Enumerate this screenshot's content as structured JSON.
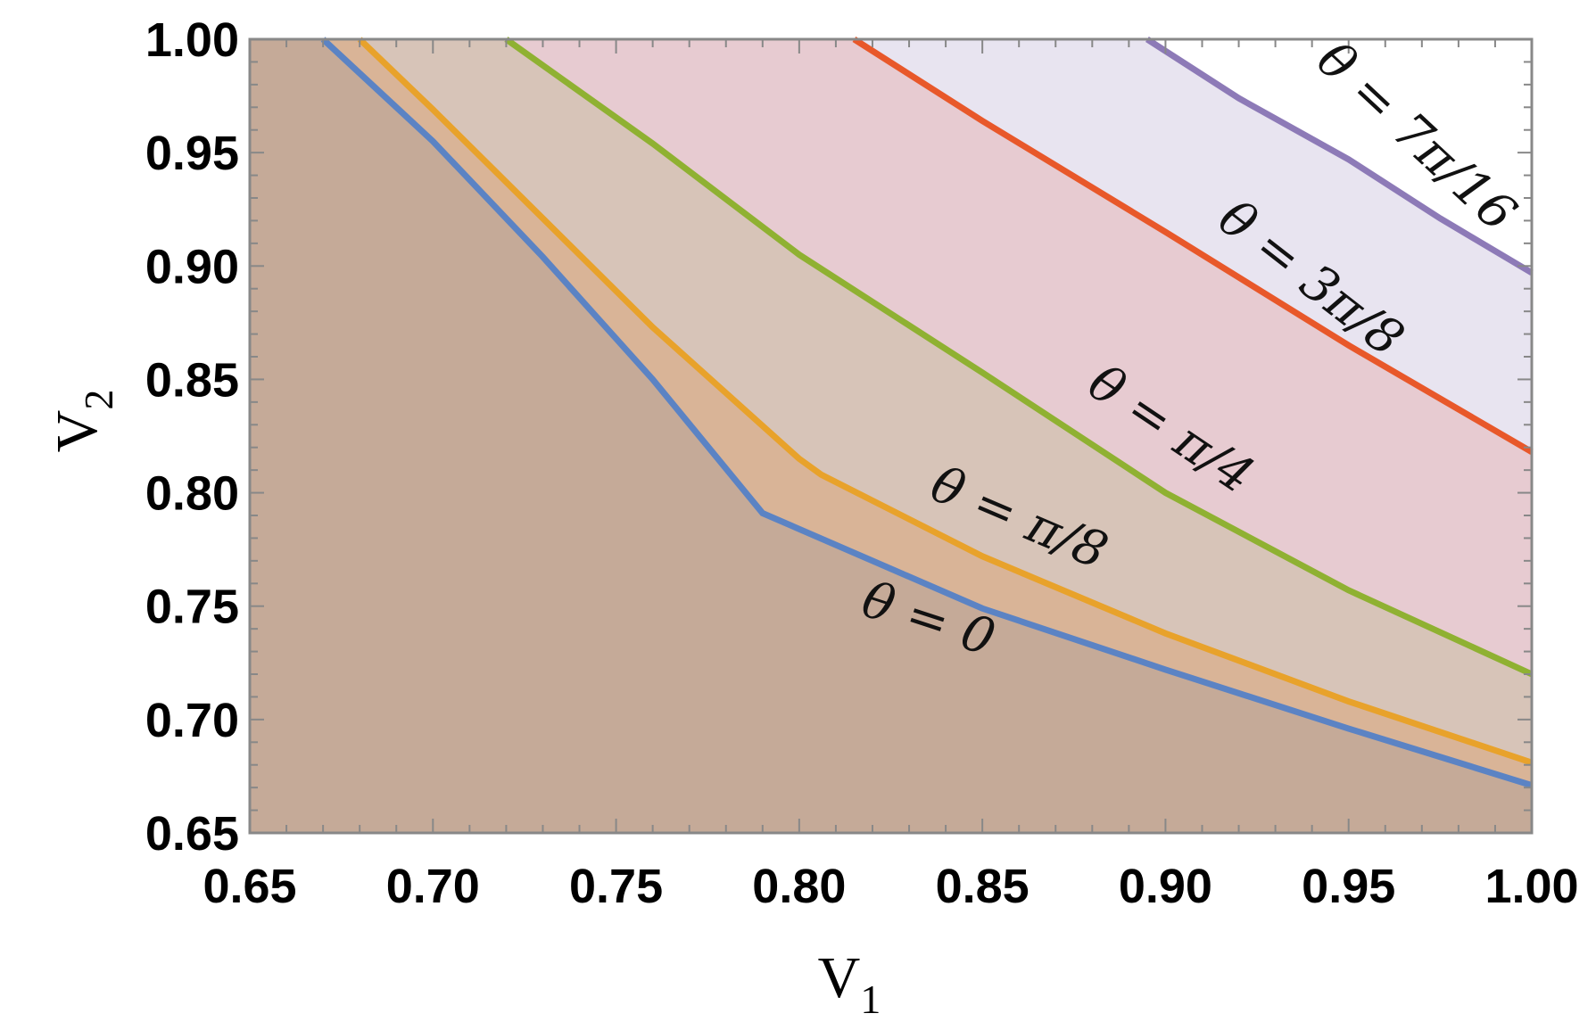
{
  "chart_data": {
    "type": "area",
    "xlabel": "V",
    "xlabel_sub": "1",
    "ylabel": "V",
    "ylabel_sub": "2",
    "xlim": [
      0.65,
      1.0
    ],
    "ylim": [
      0.65,
      1.0
    ],
    "xticks": [
      "0.65",
      "0.70",
      "0.75",
      "0.80",
      "0.85",
      "0.90",
      "0.95",
      "1.00"
    ],
    "yticks": [
      "0.65",
      "0.70",
      "0.75",
      "0.80",
      "0.85",
      "0.90",
      "0.95",
      "1.00"
    ],
    "grid": false,
    "series": [
      {
        "name": "θ = 0",
        "color": "#5b83c4",
        "fill": "#c5aa98",
        "x": [
          0.67,
          0.7,
          0.73,
          0.76,
          0.79,
          0.85,
          0.9,
          0.95,
          1.0
        ],
        "y": [
          1.0,
          0.955,
          0.904,
          0.85,
          0.791,
          0.749,
          0.722,
          0.696,
          0.671
        ]
      },
      {
        "name": "θ = π/8",
        "color": "#e8a22b",
        "fill": "#d9b497",
        "x": [
          0.68,
          0.7,
          0.73,
          0.76,
          0.8,
          0.806,
          0.85,
          0.9,
          0.95,
          1.0
        ],
        "y": [
          1.0,
          0.969,
          0.921,
          0.873,
          0.815,
          0.808,
          0.772,
          0.738,
          0.708,
          0.681
        ]
      },
      {
        "name": "θ = π/4",
        "color": "#8fb132",
        "fill": "#d7c4b8",
        "x": [
          0.72,
          0.76,
          0.8,
          0.85,
          0.9,
          0.95,
          1.0
        ],
        "y": [
          1.0,
          0.954,
          0.905,
          0.853,
          0.8,
          0.757,
          0.72
        ]
      },
      {
        "name": "θ = 3π/8",
        "color": "#e8582a",
        "fill": "#e7cbd1",
        "x": [
          0.815,
          0.85,
          0.9,
          0.95,
          1.0
        ],
        "y": [
          1.0,
          0.964,
          0.915,
          0.865,
          0.818
        ]
      },
      {
        "name": "θ = 7π/16",
        "color": "#8d7ab7",
        "fill": "#e8e4f0",
        "x": [
          0.895,
          0.92,
          0.95,
          0.975,
          1.0
        ],
        "y": [
          1.0,
          0.974,
          0.947,
          0.921,
          0.897
        ]
      }
    ],
    "annotations": [
      "θ = 0",
      "θ = π/8",
      "θ = π/4",
      "θ = 3π/8",
      "θ = 7π/16"
    ]
  }
}
